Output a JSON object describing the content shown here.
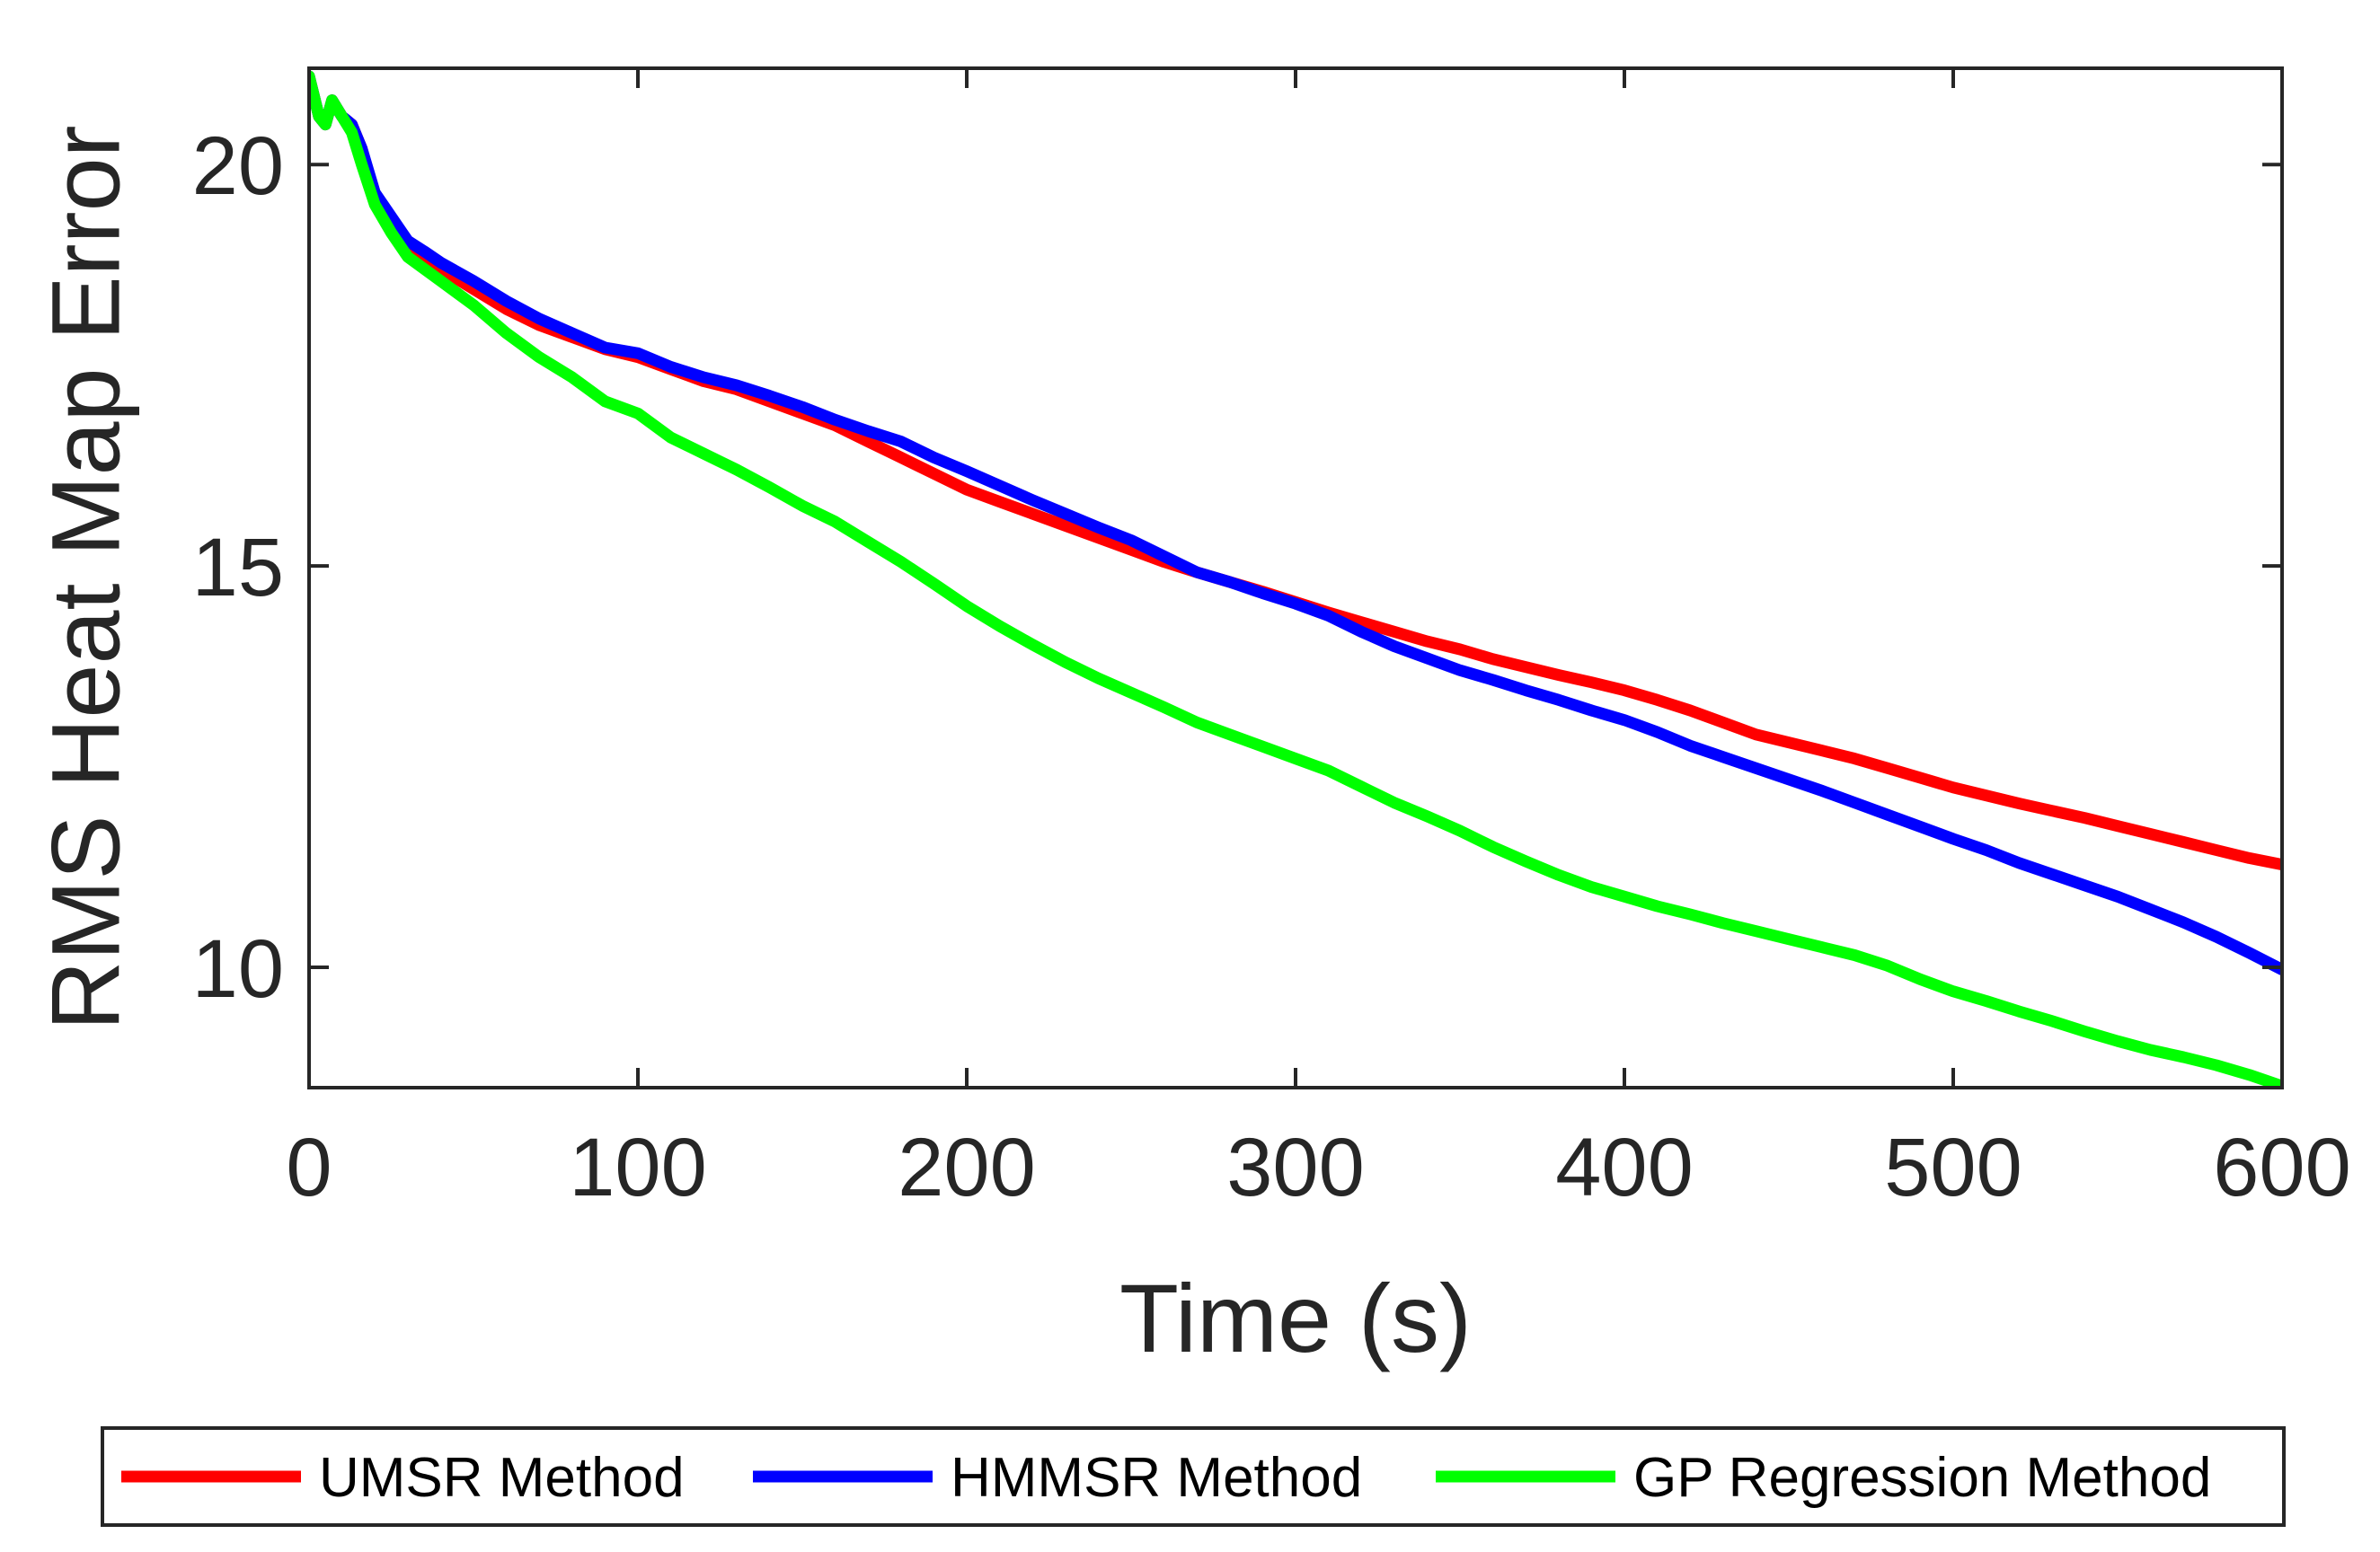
{
  "chart_data": {
    "type": "line",
    "title": "",
    "xlabel": "Time (s)",
    "ylabel": "RMS Heat Map Error",
    "xlim": [
      0,
      600
    ],
    "ylim": [
      8.5,
      21.2
    ],
    "xticks": [
      0,
      100,
      200,
      300,
      400,
      500,
      600
    ],
    "yticks": [
      10,
      15,
      20
    ],
    "grid": false,
    "legend_position": "bottom",
    "series": [
      {
        "name": "UMSR Method",
        "color": "#ff0000",
        "x": [
          0,
          3,
          5,
          7,
          10,
          13,
          16,
          20,
          25,
          30,
          35,
          40,
          50,
          60,
          70,
          80,
          90,
          100,
          110,
          120,
          130,
          140,
          150,
          160,
          170,
          180,
          190,
          200,
          210,
          220,
          230,
          240,
          250,
          260,
          270,
          280,
          290,
          300,
          310,
          320,
          330,
          340,
          350,
          360,
          370,
          380,
          390,
          400,
          410,
          420,
          430,
          440,
          450,
          460,
          470,
          480,
          490,
          500,
          510,
          520,
          530,
          540,
          550,
          560,
          570,
          580,
          590,
          600
        ],
        "values": [
          21.1,
          20.6,
          20.5,
          20.8,
          20.6,
          20.5,
          20.2,
          19.6,
          19.3,
          19.0,
          18.85,
          18.7,
          18.45,
          18.2,
          18.0,
          17.85,
          17.7,
          17.6,
          17.45,
          17.3,
          17.2,
          17.05,
          16.9,
          16.75,
          16.55,
          16.35,
          16.15,
          15.95,
          15.8,
          15.65,
          15.5,
          15.35,
          15.2,
          15.05,
          14.92,
          14.8,
          14.68,
          14.55,
          14.42,
          14.3,
          14.18,
          14.06,
          13.96,
          13.84,
          13.74,
          13.64,
          13.55,
          13.45,
          13.33,
          13.2,
          13.05,
          12.9,
          12.8,
          12.7,
          12.6,
          12.48,
          12.36,
          12.24,
          12.14,
          12.04,
          11.95,
          11.86,
          11.76,
          11.66,
          11.56,
          11.46,
          11.36,
          11.28
        ]
      },
      {
        "name": "HMMSR Method",
        "color": "#0000ff",
        "x": [
          0,
          3,
          5,
          7,
          10,
          13,
          16,
          20,
          25,
          30,
          35,
          40,
          50,
          60,
          70,
          80,
          90,
          100,
          110,
          120,
          130,
          140,
          150,
          160,
          170,
          180,
          190,
          200,
          210,
          220,
          230,
          240,
          250,
          260,
          270,
          280,
          290,
          300,
          310,
          320,
          330,
          340,
          350,
          360,
          370,
          380,
          390,
          400,
          410,
          420,
          430,
          440,
          450,
          460,
          470,
          480,
          490,
          500,
          510,
          520,
          530,
          540,
          550,
          560,
          570,
          580,
          590,
          600
        ],
        "values": [
          21.1,
          20.6,
          20.5,
          20.8,
          20.6,
          20.5,
          20.2,
          19.65,
          19.35,
          19.05,
          18.92,
          18.78,
          18.55,
          18.3,
          18.08,
          17.9,
          17.72,
          17.65,
          17.48,
          17.35,
          17.25,
          17.12,
          16.98,
          16.82,
          16.68,
          16.55,
          16.35,
          16.18,
          16.0,
          15.82,
          15.65,
          15.48,
          15.32,
          15.12,
          14.92,
          14.8,
          14.66,
          14.53,
          14.38,
          14.18,
          14.0,
          13.85,
          13.7,
          13.58,
          13.45,
          13.33,
          13.2,
          13.08,
          12.93,
          12.76,
          12.62,
          12.48,
          12.34,
          12.2,
          12.05,
          11.9,
          11.75,
          11.6,
          11.46,
          11.3,
          11.16,
          11.02,
          10.88,
          10.72,
          10.56,
          10.38,
          10.18,
          9.97
        ]
      },
      {
        "name": "GP Regression Method",
        "color": "#00ff00",
        "x": [
          0,
          3,
          5,
          7,
          10,
          13,
          16,
          20,
          25,
          30,
          35,
          40,
          50,
          60,
          70,
          80,
          90,
          100,
          110,
          120,
          130,
          140,
          150,
          160,
          170,
          180,
          190,
          200,
          210,
          220,
          230,
          240,
          250,
          260,
          270,
          280,
          290,
          300,
          310,
          320,
          330,
          340,
          350,
          360,
          370,
          380,
          390,
          400,
          410,
          420,
          430,
          440,
          450,
          460,
          470,
          480,
          490,
          500,
          510,
          520,
          530,
          540,
          550,
          560,
          570,
          580,
          590,
          600
        ],
        "values": [
          21.1,
          20.6,
          20.5,
          20.8,
          20.6,
          20.4,
          20.0,
          19.5,
          19.15,
          18.85,
          18.7,
          18.55,
          18.25,
          17.9,
          17.6,
          17.35,
          17.05,
          16.9,
          16.6,
          16.4,
          16.2,
          15.98,
          15.75,
          15.55,
          15.3,
          15.05,
          14.78,
          14.5,
          14.25,
          14.02,
          13.8,
          13.6,
          13.42,
          13.24,
          13.05,
          12.9,
          12.75,
          12.6,
          12.45,
          12.25,
          12.05,
          11.88,
          11.7,
          11.5,
          11.32,
          11.15,
          11.0,
          10.88,
          10.76,
          10.66,
          10.55,
          10.45,
          10.35,
          10.25,
          10.15,
          10.02,
          9.85,
          9.7,
          9.58,
          9.45,
          9.33,
          9.2,
          9.08,
          8.97,
          8.88,
          8.78,
          8.66,
          8.52
        ]
      }
    ]
  }
}
